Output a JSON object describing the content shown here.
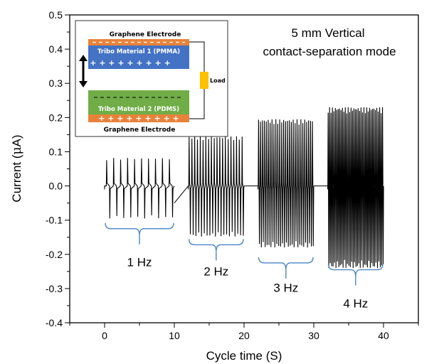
{
  "chart_data": {
    "type": "line",
    "title": "",
    "xlabel": "Cycle time (S)",
    "ylabel_parts": [
      "Current (",
      "μ",
      "A)"
    ],
    "xlim": [
      -5,
      45
    ],
    "ylim": [
      -0.4,
      0.5
    ],
    "x_ticks": [
      0,
      10,
      20,
      30,
      40
    ],
    "y_ticks": [
      -0.4,
      -0.3,
      -0.2,
      -0.1,
      0.0,
      0.1,
      0.2,
      0.3,
      0.4,
      0.5
    ],
    "y_tick_labels": [
      "-0.4",
      "-0.3",
      "-0.2",
      "-0.1",
      "0.0",
      "0.1",
      "0.2",
      "0.3",
      "0.4",
      "0.5"
    ],
    "x_tick_labels": [
      "0",
      "10",
      "20",
      "30",
      "40"
    ],
    "annotation": [
      "5 mm Vertical",
      "contact-separation mode"
    ],
    "segments": [
      {
        "label": "1 Hz",
        "x_start": 0.0,
        "x_end": 10.0,
        "pulses": 10,
        "peak_pos": 0.082,
        "peak_neg": -0.095,
        "bracket_y": -0.125,
        "label_y": -0.235
      },
      {
        "label": "2 Hz",
        "x_start": 12.0,
        "x_end": 20.0,
        "pulses": 20,
        "peak_pos": 0.145,
        "peak_neg": -0.148,
        "bracket_y": -0.172,
        "label_y": -0.262
      },
      {
        "label": "3 Hz",
        "x_start": 22.0,
        "x_end": 30.0,
        "pulses": 29,
        "peak_pos": 0.195,
        "peak_neg": -0.18,
        "bracket_y": -0.225,
        "label_y": -0.31
      },
      {
        "label": "4 Hz",
        "x_start": 32.0,
        "x_end": 40.0,
        "pulses": 39,
        "peak_pos": 0.23,
        "peak_neg": -0.24,
        "bracket_y": -0.245,
        "label_y": -0.355
      }
    ],
    "inset": {
      "top_electrode": "Graphene Electrode",
      "material_1": "Tribo Material 1 (PMMA)",
      "material_1_charge": "+ + + + + + + + +",
      "material_2": "Tribo Material 2 (PDMS)",
      "material_2_charge": "+ + + + + + + + +",
      "bottom_electrode": "Graphene Electrode",
      "load": "Load",
      "colors": {
        "electrode": "#e8823a",
        "material_1": "#4472c4",
        "material_2": "#70ad47",
        "load": "#ffc000"
      }
    },
    "line_color": "#000000"
  }
}
